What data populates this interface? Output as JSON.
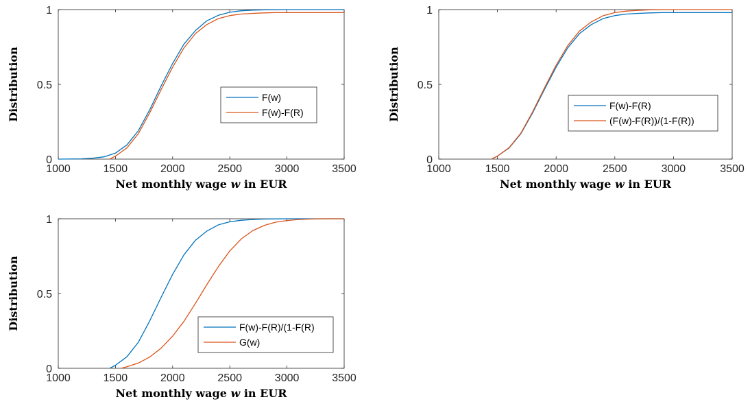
{
  "chart_data": [
    {
      "type": "line",
      "title": "",
      "xlabel": {
        "prefix": "Net monthly wage ",
        "var": "w",
        "suffix": " in EUR"
      },
      "ylabel": "Distribution",
      "xlim": [
        1000,
        3500
      ],
      "ylim": [
        0,
        1
      ],
      "xticks": [
        1000,
        1500,
        2000,
        2500,
        3000,
        3500
      ],
      "yticks": [
        0,
        0.5,
        1
      ],
      "ytick_labels": [
        "0",
        "0.5",
        "1"
      ],
      "grid": false,
      "legend_position": "middle-right",
      "series": [
        {
          "name": "F(w)",
          "color": "#0072BD",
          "x": [
            1000,
            1200,
            1300,
            1400,
            1500,
            1600,
            1700,
            1800,
            1900,
            2000,
            2100,
            2200,
            2300,
            2400,
            2500,
            2600,
            2700,
            2800,
            2900,
            3000,
            3200,
            3500
          ],
          "y": [
            0.0,
            0.002,
            0.006,
            0.015,
            0.04,
            0.095,
            0.19,
            0.33,
            0.49,
            0.64,
            0.77,
            0.86,
            0.925,
            0.962,
            0.982,
            0.992,
            0.996,
            0.998,
            0.999,
            1.0,
            1.0,
            1.0
          ]
        },
        {
          "name": "F(w)-F(R)",
          "color": "#D95319",
          "x": [
            1450,
            1500,
            1600,
            1700,
            1800,
            1900,
            2000,
            2100,
            2200,
            2300,
            2400,
            2500,
            2600,
            2700,
            2800,
            2900,
            3000,
            3200,
            3500
          ],
          "y": [
            0.0,
            0.02,
            0.075,
            0.17,
            0.31,
            0.465,
            0.615,
            0.745,
            0.84,
            0.9,
            0.94,
            0.96,
            0.97,
            0.975,
            0.978,
            0.98,
            0.98,
            0.98,
            0.98
          ]
        }
      ]
    },
    {
      "type": "line",
      "title": "",
      "xlabel": {
        "prefix": "Net monthly wage ",
        "var": "w",
        "suffix": " in EUR"
      },
      "ylabel": "Distribution",
      "xlim": [
        1000,
        3500
      ],
      "ylim": [
        0,
        1
      ],
      "xticks": [
        1000,
        1500,
        2000,
        2500,
        3000,
        3500
      ],
      "yticks": [
        0,
        0.5,
        1
      ],
      "ytick_labels": [
        "0",
        "0.5",
        "1"
      ],
      "grid": false,
      "legend_position": "bottom-right",
      "series": [
        {
          "name": "F(w)-F(R)",
          "color": "#0072BD",
          "x": [
            1450,
            1500,
            1600,
            1700,
            1800,
            1900,
            2000,
            2100,
            2200,
            2300,
            2400,
            2500,
            2600,
            2700,
            2800,
            2900,
            3000,
            3200,
            3500
          ],
          "y": [
            0.0,
            0.02,
            0.075,
            0.17,
            0.31,
            0.465,
            0.615,
            0.745,
            0.84,
            0.9,
            0.94,
            0.96,
            0.97,
            0.975,
            0.978,
            0.98,
            0.98,
            0.98,
            0.98
          ]
        },
        {
          "name": "(F(w)-F(R))/(1-F(R))",
          "color": "#D95319",
          "x": [
            1450,
            1500,
            1600,
            1700,
            1800,
            1900,
            2000,
            2100,
            2200,
            2300,
            2400,
            2500,
            2600,
            2700,
            2800,
            2900,
            3000,
            3200,
            3500
          ],
          "y": [
            0.0,
            0.02,
            0.077,
            0.174,
            0.317,
            0.475,
            0.628,
            0.76,
            0.857,
            0.918,
            0.959,
            0.98,
            0.99,
            0.995,
            0.998,
            0.999,
            1.0,
            1.0,
            1.0
          ]
        }
      ]
    },
    {
      "type": "line",
      "title": "",
      "xlabel": {
        "prefix": "Net monthly wage ",
        "var": "w",
        "suffix": " in EUR"
      },
      "ylabel": "Distribution",
      "xlim": [
        1000,
        3500
      ],
      "ylim": [
        0,
        1
      ],
      "xticks": [
        1000,
        1500,
        2000,
        2500,
        3000,
        3500
      ],
      "yticks": [
        0,
        0.5,
        1
      ],
      "ytick_labels": [
        "0",
        "0.5",
        "1"
      ],
      "grid": false,
      "legend_position": "bottom-right",
      "series": [
        {
          "name": "F(w)-F(R)/(1-F(R)",
          "color": "#0072BD",
          "x": [
            1450,
            1500,
            1600,
            1700,
            1800,
            1900,
            2000,
            2100,
            2200,
            2300,
            2400,
            2500,
            2600,
            2700,
            2800,
            2900,
            3000,
            3200,
            3500
          ],
          "y": [
            0.0,
            0.02,
            0.077,
            0.174,
            0.317,
            0.475,
            0.628,
            0.76,
            0.857,
            0.918,
            0.959,
            0.98,
            0.99,
            0.995,
            0.998,
            0.999,
            1.0,
            1.0,
            1.0
          ]
        },
        {
          "name": "G(w)",
          "color": "#D95319",
          "x": [
            1550,
            1600,
            1700,
            1800,
            1900,
            2000,
            2100,
            2200,
            2300,
            2400,
            2500,
            2600,
            2700,
            2800,
            2900,
            3000,
            3100,
            3200,
            3300,
            3500
          ],
          "y": [
            0.0,
            0.01,
            0.035,
            0.075,
            0.135,
            0.215,
            0.315,
            0.435,
            0.56,
            0.68,
            0.785,
            0.865,
            0.92,
            0.955,
            0.977,
            0.988,
            0.995,
            0.998,
            1.0,
            1.0
          ]
        }
      ]
    }
  ]
}
